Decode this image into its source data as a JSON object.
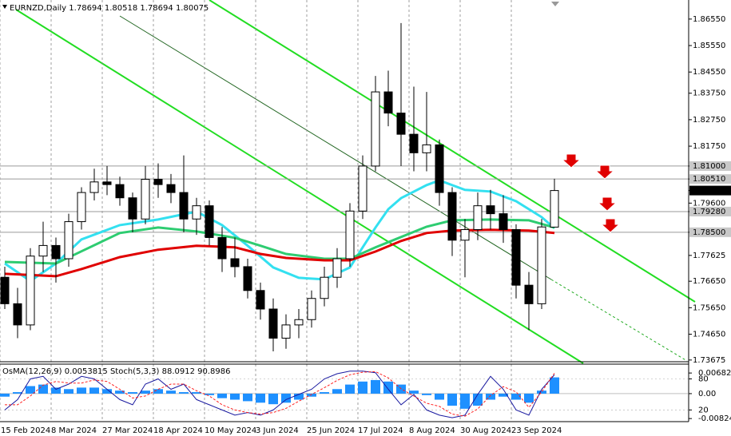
{
  "chart_data": [
    {
      "type": "candlestick",
      "title": "EURNZD,Daily",
      "categories": [
        "15 Feb 2024",
        null,
        null,
        null,
        "8 Mar 2024",
        null,
        null,
        null,
        "27 Mar 2024",
        null,
        null,
        null,
        "18 Apr 2024",
        null,
        null,
        null,
        "10 May 2024",
        null,
        null,
        null,
        "3 Jun 2024",
        null,
        null,
        null,
        "25 Jun 2024",
        null,
        null,
        null,
        "17 Jul 2024",
        null,
        null,
        null,
        "8 Aug 2024",
        null,
        null,
        null,
        "30 Aug 2024",
        null,
        null,
        null,
        "23 Sep 2024",
        null,
        null,
        null
      ],
      "open": [
        1.768,
        1.758,
        1.75,
        1.776,
        1.78,
        1.775,
        1.789,
        1.8,
        1.804,
        1.803,
        1.798,
        1.79,
        1.805,
        1.803,
        1.8,
        1.79,
        1.795,
        1.783,
        1.775,
        1.772,
        1.763,
        1.756,
        1.745,
        1.75,
        1.752,
        1.76,
        1.768,
        1.775,
        1.793,
        1.81,
        1.838,
        1.83,
        1.822,
        1.815,
        1.818,
        1.8,
        1.782,
        1.786,
        1.795,
        1.792,
        1.786,
        1.765,
        1.758,
        1.78694
      ],
      "high": [
        1.772,
        1.764,
        1.779,
        1.789,
        1.783,
        1.792,
        1.802,
        1.809,
        1.81,
        1.806,
        1.8,
        1.81,
        1.811,
        1.807,
        1.814,
        1.798,
        1.797,
        1.787,
        1.783,
        1.775,
        1.766,
        1.76,
        1.754,
        1.756,
        1.763,
        1.772,
        1.779,
        1.796,
        1.814,
        1.844,
        1.846,
        1.864,
        1.84,
        1.838,
        1.82,
        1.802,
        1.79,
        1.8,
        1.801,
        1.799,
        1.788,
        1.77,
        1.79,
        1.80518
      ],
      "low": [
        1.756,
        1.745,
        1.748,
        1.77,
        1.766,
        1.772,
        1.786,
        1.797,
        1.799,
        1.795,
        1.785,
        1.788,
        1.798,
        1.796,
        1.785,
        1.784,
        1.78,
        1.77,
        1.768,
        1.76,
        1.752,
        1.74,
        1.741,
        1.745,
        1.749,
        1.757,
        1.764,
        1.772,
        1.79,
        1.808,
        1.825,
        1.81,
        1.808,
        1.808,
        1.795,
        1.776,
        1.768,
        1.782,
        1.786,
        1.781,
        1.76,
        1.748,
        1.756,
        1.78694
      ],
      "close": [
        1.758,
        1.75,
        1.776,
        1.78,
        1.775,
        1.789,
        1.8,
        1.804,
        1.803,
        1.798,
        1.79,
        1.805,
        1.803,
        1.8,
        1.79,
        1.795,
        1.783,
        1.775,
        1.772,
        1.763,
        1.756,
        1.745,
        1.75,
        1.752,
        1.76,
        1.768,
        1.775,
        1.793,
        1.81,
        1.838,
        1.83,
        1.822,
        1.815,
        1.818,
        1.8,
        1.782,
        1.786,
        1.795,
        1.792,
        1.786,
        1.765,
        1.758,
        1.787,
        1.80075
      ],
      "up_color": "#ffffff",
      "down_color": "#000000",
      "wick_color": "#000000",
      "overlays": [
        {
          "color": "#33e0f0",
          "x": [
            0,
            2,
            4,
            6,
            9,
            12,
            15,
            17,
            19,
            21,
            23,
            25,
            27,
            28,
            29,
            30,
            31,
            33,
            34,
            36,
            38,
            40,
            42,
            43
          ],
          "values": [
            1.7732,
            1.7666,
            1.7732,
            1.7823,
            1.7877,
            1.7898,
            1.7928,
            1.7877,
            1.7799,
            1.7717,
            1.7678,
            1.7672,
            1.7717,
            1.7793,
            1.7868,
            1.7937,
            1.7979,
            1.8028,
            1.8046,
            1.801,
            1.8004,
            1.7967,
            1.7907,
            1.7865
          ]
        },
        {
          "color": "#2ecc71",
          "x": [
            0,
            4,
            6,
            9,
            12,
            15,
            18,
            20,
            22,
            25,
            27,
            29,
            31,
            33,
            35,
            38,
            41,
            43
          ],
          "values": [
            1.7738,
            1.7732,
            1.7778,
            1.7847,
            1.7868,
            1.7853,
            1.7829,
            1.7799,
            1.7768,
            1.775,
            1.775,
            1.7793,
            1.7832,
            1.7871,
            1.7895,
            1.7898,
            1.7895,
            1.7868
          ]
        },
        {
          "color": "#e00000",
          "x": [
            0,
            4,
            6,
            9,
            12,
            15,
            18,
            20,
            22,
            25,
            27,
            29,
            31,
            33,
            35,
            38,
            41,
            43
          ],
          "values": [
            1.7693,
            1.7684,
            1.7711,
            1.7756,
            1.7784,
            1.7799,
            1.7793,
            1.7768,
            1.7753,
            1.7744,
            1.7744,
            1.7777,
            1.7817,
            1.7847,
            1.7856,
            1.7859,
            1.7856,
            1.7847
          ]
        }
      ],
      "levels": [
        1.81,
        1.8051,
        1.7928,
        1.785
      ],
      "level_color": "#9a9a9a",
      "ylim": [
        1.7364,
        1.8727
      ],
      "yticks": [
        {
          "value": 1.8655,
          "label": "1.86550"
        },
        {
          "value": 1.8555,
          "label": "1.85550"
        },
        {
          "value": 1.8455,
          "label": "1.84550"
        },
        {
          "value": 1.8375,
          "label": "1.83750"
        },
        {
          "value": 1.8275,
          "label": "1.82750"
        },
        {
          "value": 1.8175,
          "label": "1.81750"
        },
        {
          "value": 1.81,
          "label": "1.81000"
        },
        {
          "value": 1.8051,
          "label": "1.80510"
        },
        1.80075,
        {
          "value": 1.796,
          "label": "1.79600"
        },
        {
          "value": 1.7928,
          "label": "1.79280"
        },
        {
          "value": 1.785,
          "label": "1.78500"
        },
        1.77625,
        {
          "value": 1.7665,
          "label": "1.76650"
        },
        {
          "value": 1.7565,
          "label": "1.75650"
        },
        {
          "value": 1.7465,
          "label": "1.74650"
        },
        1.73675
      ]
    },
    {
      "type": "oscillator",
      "title": "OsMA(12,26,9) 0.0053815 Stoch(5,3,3) 88.0912 90.8986",
      "ylim": [
        -0.009,
        0.0095
      ],
      "yticks": [
        0.0068248,
        {
          "value": 0,
          "label": "0.00"
        },
        -0.008248
      ],
      "y2lim": [
        -1,
        107
      ],
      "y2ticks": [
        80,
        20
      ],
      "series": [
        {
          "type": "bar",
          "color": "#1e90ff",
          "values": [
            -0.001,
            0.0005,
            0.0025,
            0.003,
            0.002,
            0.0015,
            0.002,
            0.002,
            0.0015,
            0.001,
            0.0005,
            0.001,
            0.0015,
            0.001,
            0.0005,
            0.0005,
            -0.0005,
            -0.0015,
            -0.002,
            -0.0025,
            -0.003,
            -0.0035,
            -0.003,
            -0.002,
            -0.001,
            0.0005,
            0.0015,
            0.003,
            0.004,
            0.0045,
            0.004,
            0.003,
            0.001,
            -0.0005,
            -0.002,
            -0.004,
            -0.005,
            -0.004,
            -0.002,
            -0.001,
            -0.002,
            -0.003,
            0.001,
            0.0053815
          ]
        },
        {
          "type": "line",
          "axis": "y2",
          "color": "#1a1aa0",
          "values": [
            20,
            40,
            80,
            85,
            60,
            70,
            85,
            80,
            60,
            40,
            30,
            70,
            80,
            60,
            70,
            40,
            30,
            20,
            10,
            15,
            10,
            20,
            40,
            50,
            60,
            80,
            90,
            95,
            95,
            92,
            60,
            30,
            50,
            20,
            10,
            5,
            10,
            50,
            85,
            60,
            20,
            10,
            60,
            88.0912
          ]
        },
        {
          "type": "line",
          "axis": "y2",
          "color": "#ff2020",
          "dashed": true,
          "values": [
            30,
            30,
            47,
            68,
            75,
            72,
            72,
            78,
            75,
            60,
            43,
            47,
            60,
            70,
            70,
            57,
            47,
            30,
            20,
            15,
            12,
            15,
            23,
            37,
            50,
            63,
            77,
            88,
            93,
            94,
            82,
            61,
            47,
            33,
            27,
            12,
            8,
            22,
            48,
            65,
            55,
            25,
            55,
            90.8986
          ]
        }
      ]
    }
  ]
}
